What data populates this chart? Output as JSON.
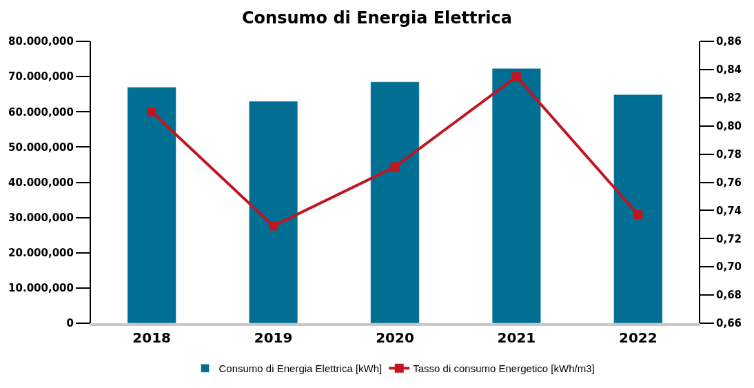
{
  "chart_data": {
    "type": "bar",
    "title": "Consumo di Energia Elettrica",
    "categories": [
      "2018",
      "2019",
      "2020",
      "2021",
      "2022"
    ],
    "series": [
      {
        "name": "Consumo di Energia Elettrica [kWh]",
        "color": "#006f93",
        "values": [
          67000,
          63000,
          68500,
          72300,
          64900
        ]
      },
      {
        "name": "Tasso di consumo Energetico [kWh/m3]",
        "type": "line",
        "axis": "y2",
        "color": "#c1161f",
        "marker": "square",
        "values": [
          0.81,
          0.729,
          0.771,
          0.835,
          0.737
        ]
      }
    ],
    "ylim": [
      0,
      80000
    ],
    "yticks": [
      {
        "value": 0,
        "label": "0"
      },
      {
        "value": 10000,
        "label": "10.000,000"
      },
      {
        "value": 20000,
        "label": "20.000,000"
      },
      {
        "value": 30000,
        "label": "30.000,000"
      },
      {
        "value": 40000,
        "label": "40.000,000"
      },
      {
        "value": 50000,
        "label": "50.000,000"
      },
      {
        "value": 60000,
        "label": "60.000,000"
      },
      {
        "value": 70000,
        "label": "70.000,000"
      },
      {
        "value": 80000,
        "label": "80.000,000"
      }
    ],
    "y2lim": [
      0.66,
      0.86
    ],
    "y2ticks": [
      {
        "value": 0.66,
        "label": "0,66"
      },
      {
        "value": 0.68,
        "label": "0,68"
      },
      {
        "value": 0.7,
        "label": "0,70"
      },
      {
        "value": 0.72,
        "label": "0,72"
      },
      {
        "value": 0.74,
        "label": "0,74"
      },
      {
        "value": 0.76,
        "label": "0,76"
      },
      {
        "value": 0.78,
        "label": "0,78"
      },
      {
        "value": 0.8,
        "label": "0,80"
      },
      {
        "value": 0.82,
        "label": "0,82"
      },
      {
        "value": 0.84,
        "label": "0,84"
      },
      {
        "value": 0.86,
        "label": "0,86"
      }
    ],
    "legend": "bottom"
  }
}
